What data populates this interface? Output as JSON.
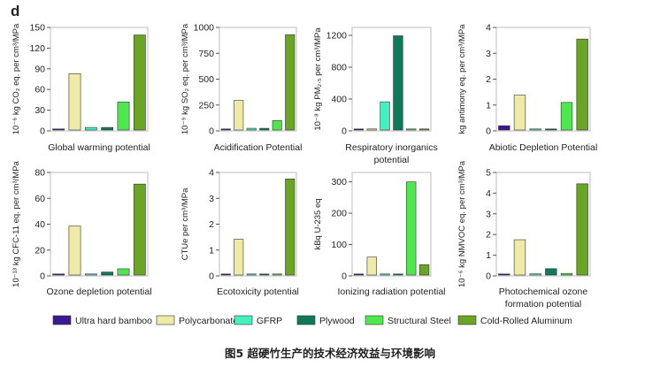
{
  "figure": {
    "panel_label": "d",
    "caption": "图5 超硬竹生产的技术经济效益与环境影响"
  },
  "colors": {
    "Ultra hard bamboo": "#3b1a8f",
    "Polycarbonate": "#efeaa6",
    "GFRP": "#45f0c0",
    "Plywood": "#0f7a5a",
    "Structural Steel": "#4ce84c",
    "Cold-Rolled Aluminum": "#6aa526"
  },
  "legend": [
    "Ultra hard bamboo",
    "Polycarbonate",
    "GFRP",
    "Plywood",
    "Structural Steel",
    "Cold-Rolled Aluminum"
  ],
  "chart_data": [
    {
      "type": "bar",
      "title": "Global warming potential",
      "ylabel": "10⁻⁶ kg CO₂ eq. per cm³/MPa",
      "ylim": [
        0,
        150
      ],
      "yticks": [
        0,
        30,
        60,
        90,
        120,
        150
      ],
      "categories": [
        "Ultra hard bamboo",
        "Polycarbonate",
        "GFRP",
        "Plywood",
        "Structural Steel",
        "Cold-Rolled Aluminum"
      ],
      "values": [
        1,
        83,
        5,
        5,
        42,
        139
      ]
    },
    {
      "type": "bar",
      "title": "Acidification Potential",
      "ylabel": "10⁻⁹ kg SO₂ eq. per cm³/MPa",
      "ylim": [
        0,
        1000
      ],
      "yticks": [
        0,
        250,
        500,
        750,
        1000
      ],
      "categories": [
        "Ultra hard bamboo",
        "Polycarbonate",
        "GFRP",
        "Plywood",
        "Structural Steel",
        "Cold-Rolled Aluminum"
      ],
      "values": [
        5,
        295,
        25,
        25,
        100,
        930
      ]
    },
    {
      "type": "bar",
      "title": "Respiratory inorganics potential",
      "ylabel": "10⁻⁸ kg PM₂.₅ per cm³/MPa",
      "ylim": [
        0,
        1300
      ],
      "yticks": [
        0,
        400,
        800,
        1200
      ],
      "categories": [
        "Ultra hard bamboo",
        "Polycarbonate",
        "GFRP",
        "Plywood",
        "Structural Steel",
        "Cold-Rolled Aluminum"
      ],
      "values": [
        0,
        0,
        365,
        1195,
        0,
        0
      ]
    },
    {
      "type": "bar",
      "title": "Abiotic Depletion Potential",
      "ylabel": "kg antimony eq. per cm³/MPa",
      "ylim": [
        0,
        4
      ],
      "yticks": [
        0,
        1,
        2,
        3,
        4
      ],
      "categories": [
        "Ultra hard bamboo",
        "Polycarbonate",
        "GFRP",
        "Plywood",
        "Structural Steel",
        "Cold-Rolled Aluminum"
      ],
      "values": [
        0.2,
        1.38,
        0.02,
        0.02,
        1.1,
        3.55
      ]
    },
    {
      "type": "bar",
      "title": "Ozone depletion potential",
      "ylabel": "10⁻¹³ kg CFC-11 eq. per cm³/MPa",
      "ylim": [
        0,
        80
      ],
      "yticks": [
        0,
        20,
        40,
        60,
        80
      ],
      "categories": [
        "Ultra hard bamboo",
        "Polycarbonate",
        "GFRP",
        "Plywood",
        "Structural Steel",
        "Cold-Rolled Aluminum"
      ],
      "values": [
        0.3,
        38.5,
        0.3,
        3,
        5.5,
        71
      ]
    },
    {
      "type": "bar",
      "title": "Ecotoxicity potential",
      "ylabel": "CTUe per cm³/MPa",
      "ylim": [
        0,
        4
      ],
      "yticks": [
        0,
        1,
        2,
        3,
        4
      ],
      "categories": [
        "Ultra hard bamboo",
        "Polycarbonate",
        "GFRP",
        "Plywood",
        "Structural Steel",
        "Cold-Rolled Aluminum"
      ],
      "values": [
        0.01,
        1.42,
        0.04,
        0.04,
        0.04,
        3.75
      ]
    },
    {
      "type": "bar",
      "title": "Ionizing radiation potential",
      "ylabel": "kBq U-235 eq",
      "ylim": [
        0,
        330
      ],
      "yticks": [
        0,
        100,
        200,
        300
      ],
      "categories": [
        "Ultra hard bamboo",
        "Polycarbonate",
        "GFRP",
        "Plywood",
        "Structural Steel",
        "Cold-Rolled Aluminum"
      ],
      "values": [
        2,
        60,
        2,
        2,
        300,
        36
      ]
    },
    {
      "type": "bar",
      "title": "Photochemical ozone formation potential",
      "ylabel": "10⁻⁶ kg NMVOC eq. per cm³/MPa",
      "ylim": [
        0,
        5
      ],
      "yticks": [
        0,
        1,
        2,
        3,
        4,
        5
      ],
      "categories": [
        "Ultra hard bamboo",
        "Polycarbonate",
        "GFRP",
        "Plywood",
        "Structural Steel",
        "Cold-Rolled Aluminum"
      ],
      "values": [
        0.02,
        1.75,
        0.1,
        0.35,
        0.12,
        4.45
      ]
    }
  ]
}
